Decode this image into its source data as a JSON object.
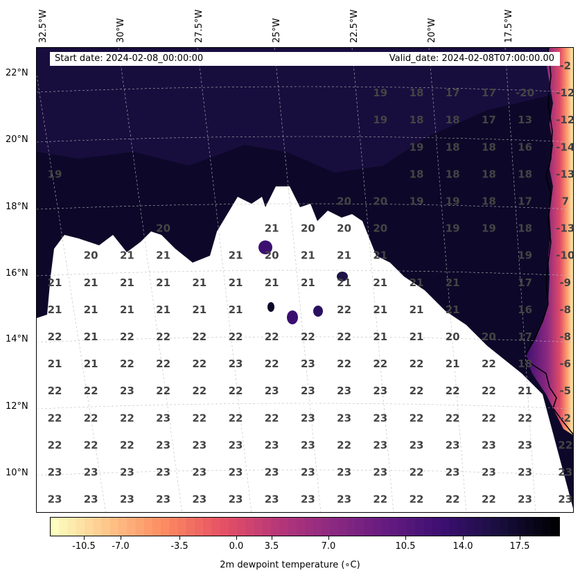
{
  "header": {
    "start_date": "Start date: 2024-02-08_00:00:00",
    "valid_date": "Valid_date: 2024-02-08T07:00:00.00"
  },
  "axes": {
    "lon_labels": [
      "32.5°W",
      "30°W",
      "27.5°W",
      "25°W",
      "22.5°W",
      "20°W",
      "17.5°W"
    ],
    "lat_labels": [
      "22°N",
      "20°N",
      "18°N",
      "16°N",
      "14°N",
      "12°N",
      "10°N"
    ]
  },
  "colorbar": {
    "label": "2m dewpoint temperature ($^\\circ$C)",
    "label_display": "2m dewpoint temperature (∘C)",
    "ticks": [
      "-10.5",
      "-7.0",
      "-3.5",
      "0.0",
      "3.5",
      "7.0",
      "10.5",
      "14.0",
      "17.5"
    ],
    "colormap": "magma_r",
    "range": [
      -12,
      19
    ]
  },
  "grid_values": [
    [
      "",
      "",
      "",
      "",
      "",
      "",
      "",
      "",
      "",
      "",
      "",
      "",
      "",
      "",
      "-2"
    ],
    [
      "",
      "",
      "",
      "",
      "",
      "",
      "",
      "",
      "",
      "19",
      "18",
      "17",
      "17",
      "-20",
      "-12"
    ],
    [
      "",
      "",
      "",
      "",
      "",
      "",
      "",
      "",
      "",
      "19",
      "18",
      "18",
      "17",
      "13",
      "-12"
    ],
    [
      "",
      "",
      "",
      "",
      "",
      "",
      "",
      "",
      "",
      "",
      "19",
      "18",
      "18",
      "16",
      "-14"
    ],
    [
      "19",
      "",
      "",
      "",
      "",
      "",
      "",
      "",
      "",
      "",
      "18",
      "18",
      "18",
      "18",
      "-13"
    ],
    [
      "",
      "",
      "",
      "",
      "",
      "",
      "",
      "",
      "20",
      "20",
      "19",
      "19",
      "18",
      "17",
      "7"
    ],
    [
      "",
      "",
      "",
      "20",
      "",
      "",
      "21",
      "20",
      "20",
      "20",
      "",
      "19",
      "19",
      "18",
      "-13"
    ],
    [
      "",
      "20",
      "21",
      "21",
      "",
      "21",
      "20",
      "21",
      "21",
      "21",
      "",
      "",
      "",
      "19",
      "-10"
    ],
    [
      "21",
      "21",
      "21",
      "21",
      "21",
      "21",
      "21",
      "21",
      "21",
      "21",
      "21",
      "21",
      "",
      "17",
      "-9"
    ],
    [
      "21",
      "21",
      "21",
      "21",
      "21",
      "21",
      "",
      "",
      "22",
      "21",
      "21",
      "21",
      "",
      "16",
      "-8"
    ],
    [
      "22",
      "21",
      "22",
      "22",
      "22",
      "22",
      "22",
      "22",
      "22",
      "21",
      "21",
      "20",
      "20",
      "17",
      "-8"
    ],
    [
      "21",
      "21",
      "22",
      "22",
      "22",
      "23",
      "22",
      "23",
      "22",
      "22",
      "22",
      "21",
      "22",
      "18",
      "-6"
    ],
    [
      "22",
      "22",
      "23",
      "22",
      "22",
      "22",
      "23",
      "23",
      "23",
      "23",
      "22",
      "22",
      "22",
      "21",
      "-5"
    ],
    [
      "22",
      "22",
      "22",
      "23",
      "22",
      "22",
      "22",
      "23",
      "23",
      "23",
      "22",
      "22",
      "22",
      "22",
      "-2"
    ],
    [
      "22",
      "22",
      "22",
      "23",
      "23",
      "23",
      "23",
      "23",
      "22",
      "23",
      "23",
      "23",
      "23",
      "23",
      "22"
    ],
    [
      "23",
      "23",
      "23",
      "23",
      "23",
      "23",
      "23",
      "23",
      "23",
      "23",
      "22",
      "23",
      "23",
      "23",
      "23"
    ],
    [
      "23",
      "23",
      "23",
      "23",
      "23",
      "23",
      "23",
      "23",
      "23",
      "22",
      "22",
      "22",
      "22",
      "23",
      "23"
    ]
  ]
}
